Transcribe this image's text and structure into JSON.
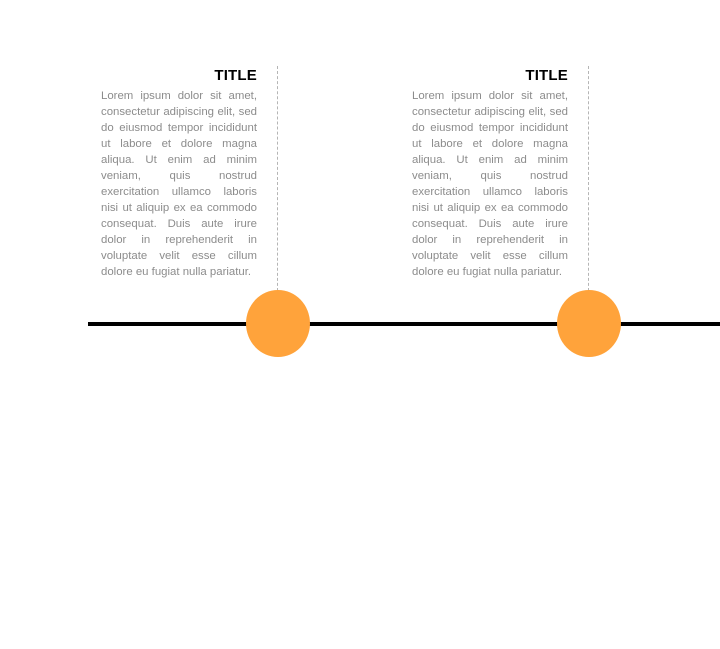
{
  "colors": {
    "line": "#000000",
    "marker": "#FFA33B",
    "title": "#000000",
    "body_text": "#8C8C8C",
    "connector": "#B5B5B5"
  },
  "milestones": [
    {
      "title": "TITLE",
      "text": "Lorem ipsum dolor sit amet, consectetur adipiscing elit, sed do eiusmod tempor incididunt ut labore et dolore magna aliqua. Ut enim ad minim veniam, quis nostrud exercitation ullamco laboris nisi ut aliquip ex ea commodo consequat. Duis aute irure dolor in reprehenderit in voluptate velit esse cillum dolore eu fugiat nulla pariatur."
    },
    {
      "title": "TITLE",
      "text": "Lorem ipsum dolor sit amet, consectetur adipiscing elit, sed do eiusmod tempor incididunt ut labore et dolore magna aliqua. Ut enim ad minim veniam, quis nostrud exercitation ullamco laboris nisi ut aliquip ex ea commodo consequat. Duis aute irure dolor in reprehenderit in voluptate velit esse cillum dolore eu fugiat nulla pariatur."
    }
  ]
}
